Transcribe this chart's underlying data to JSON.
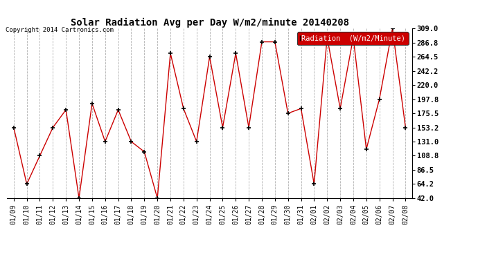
{
  "title": "Solar Radiation Avg per Day W/m2/minute 20140208",
  "copyright": "Copyright 2014 Cartronics.com",
  "legend_label": "Radiation  (W/m2/Minute)",
  "legend_bg": "#cc0000",
  "legend_text_color": "#ffffff",
  "background_color": "#ffffff",
  "plot_bg": "#ffffff",
  "grid_color": "#b0b0b0",
  "line_color": "#cc0000",
  "marker_color": "#000000",
  "ylim": [
    42.0,
    309.0
  ],
  "yticks": [
    42.0,
    64.2,
    86.5,
    108.8,
    131.0,
    153.2,
    175.5,
    197.8,
    220.0,
    242.2,
    264.5,
    286.8,
    309.0
  ],
  "dates": [
    "01/09",
    "01/10",
    "01/11",
    "01/12",
    "01/13",
    "01/14",
    "01/15",
    "01/16",
    "01/17",
    "01/18",
    "01/19",
    "01/20",
    "01/21",
    "01/22",
    "01/23",
    "01/24",
    "01/25",
    "01/26",
    "01/27",
    "01/28",
    "01/29",
    "01/30",
    "01/31",
    "02/01",
    "02/02",
    "02/03",
    "02/04",
    "02/05",
    "02/06",
    "02/07",
    "02/08"
  ],
  "values": [
    153.2,
    64.2,
    108.8,
    153.2,
    181.0,
    42.0,
    191.0,
    131.0,
    181.0,
    131.0,
    115.0,
    42.0,
    270.0,
    183.0,
    131.0,
    264.5,
    153.2,
    270.0,
    153.2,
    288.0,
    288.0,
    175.5,
    183.0,
    64.2,
    295.0,
    183.0,
    295.0,
    119.0,
    197.8,
    309.0,
    153.2
  ],
  "title_fontsize": 10,
  "tick_fontsize": 7,
  "ytick_fontsize": 7.5
}
